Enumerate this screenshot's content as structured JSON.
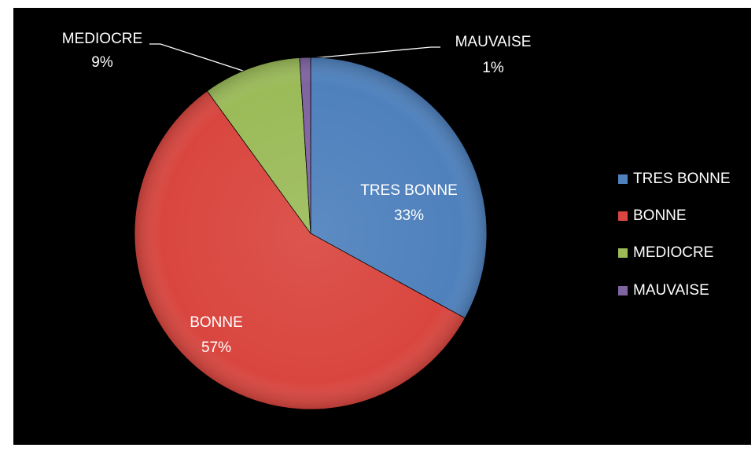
{
  "chart_data": {
    "type": "pie",
    "categories": [
      "TRES BONNE",
      "BONNE",
      "MEDIOCRE",
      "MAUVAISE"
    ],
    "values": [
      33,
      57,
      9,
      1
    ],
    "value_labels": [
      "33%",
      "57%",
      "9%",
      "1%"
    ],
    "colors": [
      "#4f81bd",
      "#d9463f",
      "#9bbb59",
      "#8064a2"
    ],
    "legend": "right"
  }
}
